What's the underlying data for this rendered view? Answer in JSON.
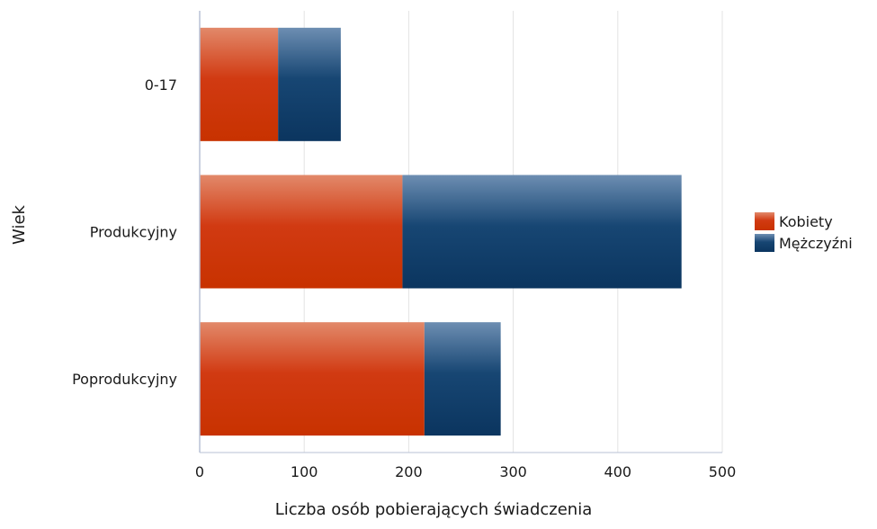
{
  "chart_data": {
    "type": "bar",
    "orientation": "horizontal",
    "stacked": true,
    "title": "",
    "xlabel": "Liczba osób pobierających świadczenia",
    "ylabel": "Wiek",
    "xlim": [
      0,
      500
    ],
    "x_ticks": [
      "0",
      "100",
      "200",
      "300",
      "400",
      "500"
    ],
    "categories": [
      "0-17",
      "Produkcyjny",
      "Poprodukcyjny"
    ],
    "series": [
      {
        "name": "Kobiety",
        "color": "#d13a12",
        "values": [
          75,
          194,
          215
        ]
      },
      {
        "name": "Mężczyźni",
        "color": "#12406e",
        "values": [
          60,
          267,
          73
        ]
      }
    ],
    "grid": "vertical",
    "legend": "right"
  }
}
